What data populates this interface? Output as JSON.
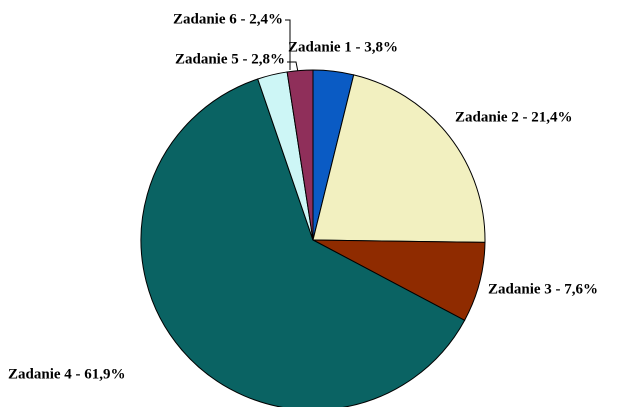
{
  "chart_data": {
    "type": "pie",
    "categories": [
      "Zadanie 1 - 3,8%",
      "Zadanie 2 - 21,4%",
      "Zadanie 3 - 7,6%",
      "Zadanie 4 - 61,9%",
      "Zadanie 5 - 2,8%",
      "Zadanie 6 - 2,4%"
    ],
    "values": [
      3.8,
      21.4,
      7.6,
      61.9,
      2.8,
      2.4
    ],
    "colors": [
      "#0a5bc4",
      "#f2f0c0",
      "#8f2b00",
      "#0a6363",
      "#cdf6f6",
      "#8f2f5a"
    ]
  }
}
